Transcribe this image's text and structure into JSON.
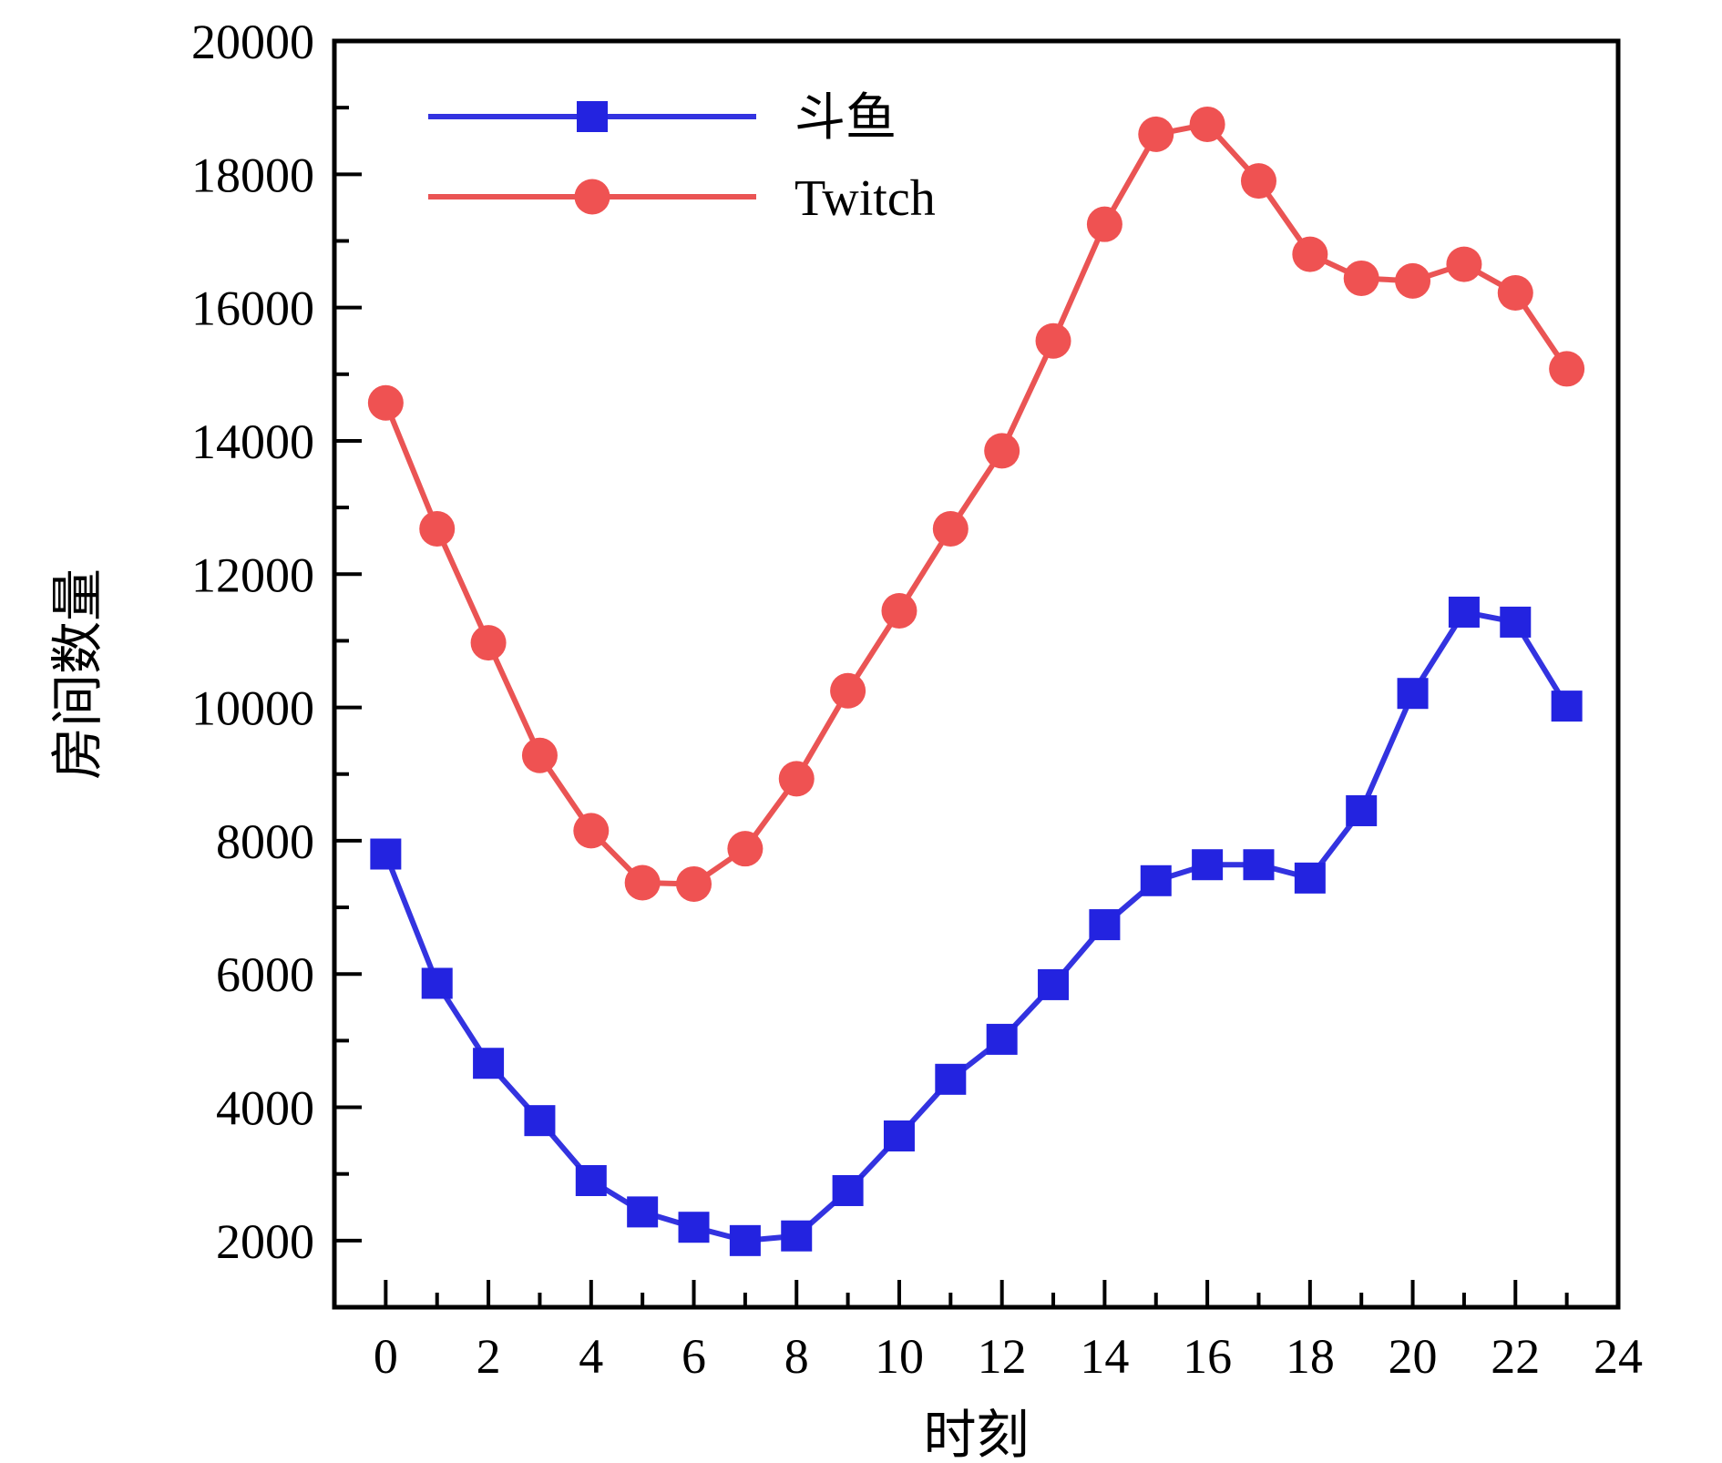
{
  "chart_data": {
    "type": "line",
    "x": [
      0,
      1,
      2,
      3,
      4,
      5,
      6,
      7,
      8,
      9,
      10,
      11,
      12,
      13,
      14,
      15,
      16,
      17,
      18,
      19,
      20,
      21,
      22,
      23
    ],
    "series": [
      {
        "name": "斗鱼",
        "marker": "square",
        "color": "#2222DD",
        "marker_color": "#2323E0",
        "values": [
          7800,
          5860,
          4660,
          3800,
          2900,
          2430,
          2200,
          2000,
          2070,
          2750,
          3570,
          4420,
          5020,
          5840,
          6740,
          7400,
          7640,
          7640,
          7440,
          8450,
          10210,
          11430,
          11280,
          10020
        ]
      },
      {
        "name": "Twitch",
        "marker": "circle",
        "color": "#E84545",
        "marker_color": "#EF5252",
        "values": [
          14570,
          12680,
          10970,
          9280,
          8150,
          7370,
          7350,
          7880,
          8930,
          10250,
          11450,
          12680,
          13850,
          15500,
          17250,
          18600,
          18750,
          17900,
          16800,
          16440,
          16400,
          16650,
          16220,
          15080
        ]
      }
    ],
    "title": "",
    "xlabel": "时刻",
    "ylabel": "房间数量",
    "xlim": [
      -1,
      24
    ],
    "ylim": [
      1000,
      20000
    ],
    "x_major_ticks": [
      0,
      2,
      4,
      6,
      8,
      10,
      12,
      14,
      16,
      18,
      20,
      22,
      24
    ],
    "x_minor_ticks": [
      1,
      3,
      5,
      7,
      9,
      11,
      13,
      15,
      17,
      19,
      21,
      23
    ],
    "y_major_ticks": [
      2000,
      4000,
      6000,
      8000,
      10000,
      12000,
      14000,
      16000,
      18000,
      20000
    ],
    "y_minor_step": 1000,
    "grid": false,
    "legend_position": "upper-left",
    "axis_color": "#000000"
  }
}
